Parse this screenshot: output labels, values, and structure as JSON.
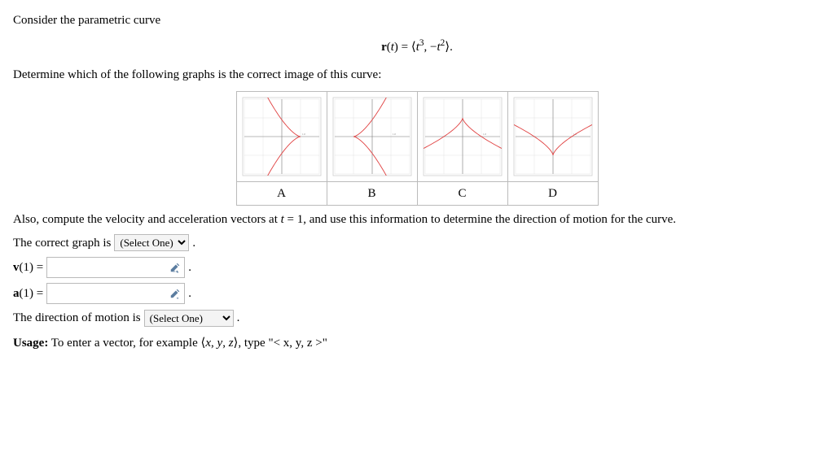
{
  "intro_text": "Consider the parametric curve",
  "equation_html": "<span class='math-bold'>r</span>(<span class='math'>t</span>) = &#10216;<span class='math'>t</span><span class='sup'>3</span>, &minus;<span class='math'>t</span><span class='sup'>2</span>&#10217;.",
  "determine_text": "Determine which of the following graphs is the correct image of this curve:",
  "graph_labels": [
    "A",
    "B",
    "C",
    "D"
  ],
  "graphs": {
    "plot_size": 104,
    "bg": "#ffffff",
    "border": "#cfcfcf",
    "grid_color": "#e2e2e2",
    "axis_color": "#808080",
    "curve_color": "#e04040",
    "curve_width": 0.9,
    "xlim": [
      -2,
      2
    ],
    "ylim": [
      -2,
      2
    ],
    "ticks": [
      -2,
      -1,
      0,
      1,
      2
    ],
    "label_tick": "1.0",
    "label_fontsize": 3.2,
    "label_color": "#808080"
  },
  "also_text_prefix": "Also, compute the velocity and acceleration vectors at ",
  "also_text_mid_html": "<span class='math'>t</span> = 1",
  "also_text_suffix": ", and use this information to determine the direction of motion for the curve.",
  "correct_graph_label": "The correct graph is ",
  "select_one": "(Select One)",
  "period": " .",
  "v_label_html": "<span class='math-bold'>v</span>(1) = ",
  "a_label_html": "<span class='math-bold'>a</span>(1) = ",
  "direction_label": "The direction of motion is ",
  "usage_label": "Usage:",
  "usage_text_html": " To enter a vector, for example <span class='angle'>&#10216;<span class='math'>x</span>, <span class='math'>y</span>, <span class='math'>z</span>&#10217;</span>, type \"&lt; x, y, z &gt;\""
}
